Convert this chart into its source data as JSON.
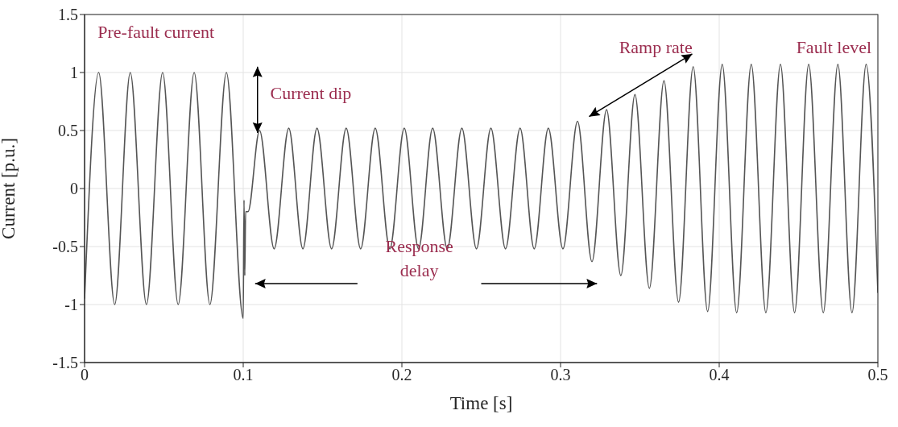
{
  "chart_data": {
    "type": "line",
    "xlabel": "Time [s]",
    "ylabel": "Current [p.u.]",
    "xlim": [
      0,
      0.5
    ],
    "xticks": [
      0,
      0.1,
      0.2,
      0.3,
      0.4,
      0.5
    ],
    "ylim": [
      -1.5,
      1.5
    ],
    "yticks": [
      -1.5,
      -1,
      -0.5,
      0,
      0.5,
      1,
      1.5
    ],
    "grid": true,
    "annotations": [
      "Pre-fault current",
      {
        "text": "Current dip",
        "x": 0.109,
        "y": 0.48
      },
      {
        "text": "Ramp rate",
        "x": 0.318,
        "y": 0.62
      },
      "Fault level",
      "Response delay"
    ],
    "series": [
      {
        "color": "#555555",
        "x": [
          0,
          0.0089,
          0.019,
          0.0288,
          0.039,
          0.0492,
          0.059,
          0.0691,
          0.079,
          0.0894,
          0.1,
          0.1005,
          0.101,
          0.1015,
          0.103,
          0.1103,
          0.1195,
          0.1287,
          0.1376,
          0.1465,
          0.1557,
          0.1649,
          0.174,
          0.1832,
          0.1924,
          0.2015,
          0.2105,
          0.2194,
          0.2286,
          0.2378,
          0.247,
          0.2561,
          0.2653,
          0.2745,
          0.2834,
          0.2923,
          0.3015,
          0.3107,
          0.3198,
          0.329,
          0.338,
          0.3469,
          0.356,
          0.3652,
          0.3744,
          0.3836,
          0.3927,
          0.4019,
          0.411,
          0.4202,
          0.4294,
          0.4386,
          0.4475,
          0.4564,
          0.4656,
          0.4748,
          0.4837,
          0.4926,
          0.5
        ],
        "values": [
          -0.95,
          1,
          -1,
          1,
          -1,
          1,
          -1,
          1,
          -1,
          1,
          -1.12,
          -0.1,
          -0.75,
          -0.2,
          -0.2,
          0.5,
          -0.52,
          0.52,
          -0.52,
          0.52,
          -0.52,
          0.52,
          -0.52,
          0.52,
          -0.52,
          0.52,
          -0.52,
          0.52,
          -0.52,
          0.52,
          -0.52,
          0.52,
          -0.52,
          0.52,
          -0.52,
          0.52,
          -0.52,
          0.58,
          -0.63,
          0.68,
          -0.75,
          0.81,
          -0.86,
          0.93,
          -0.98,
          1.05,
          -1.06,
          1.07,
          -1.07,
          1.07,
          -1.07,
          1.07,
          -1.07,
          1.07,
          -1.07,
          1.07,
          -1.07,
          1.07,
          -0.9
        ]
      }
    ]
  }
}
